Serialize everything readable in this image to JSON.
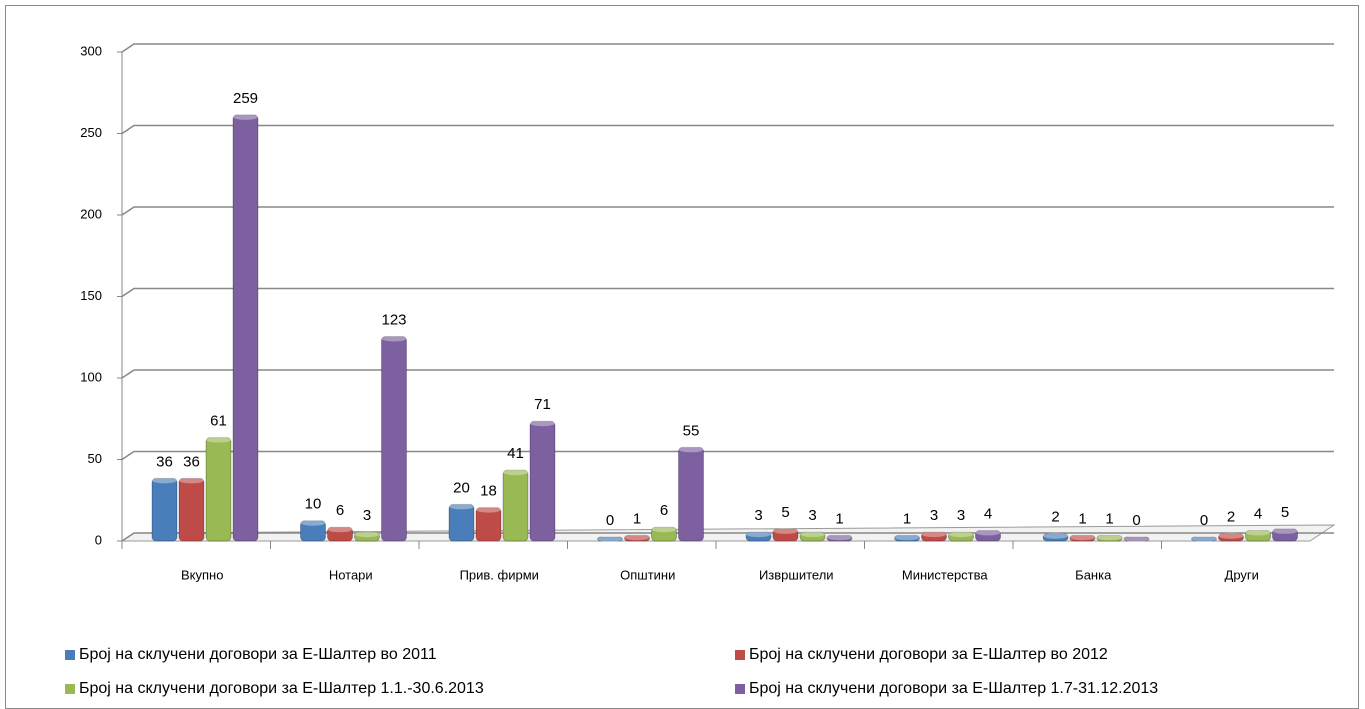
{
  "chart_data": {
    "type": "bar",
    "categories": [
      "Вкупно",
      "Нотари",
      "Прив. фирми",
      "Општини",
      "Извршители",
      "Министерства",
      "Банка",
      "Други"
    ],
    "series": [
      {
        "name": "Број на склучени договори за Е-Шалтер во 2011",
        "color": "#4a7ebb",
        "values": [
          36,
          10,
          20,
          0,
          3,
          1,
          2,
          0
        ]
      },
      {
        "name": "Број на склучени договори за Е-Шалтер во 2012",
        "color": "#be4b48",
        "values": [
          36,
          6,
          18,
          1,
          5,
          3,
          1,
          2
        ]
      },
      {
        "name": "Број на склучени договори за Е-Шалтер 1.1.-30.6.2013",
        "color": "#98b954",
        "values": [
          61,
          3,
          41,
          6,
          3,
          3,
          1,
          4
        ]
      },
      {
        "name": "Број на склучени договори за Е-Шалтер 1.7-31.12.2013",
        "color": "#7d60a0",
        "values": [
          259,
          123,
          71,
          55,
          1,
          4,
          0,
          5
        ]
      }
    ],
    "ylim": [
      0,
      300
    ],
    "yticks": [
      0,
      50,
      100,
      150,
      200,
      250,
      300
    ],
    "grid": true,
    "legend": "bottom"
  }
}
